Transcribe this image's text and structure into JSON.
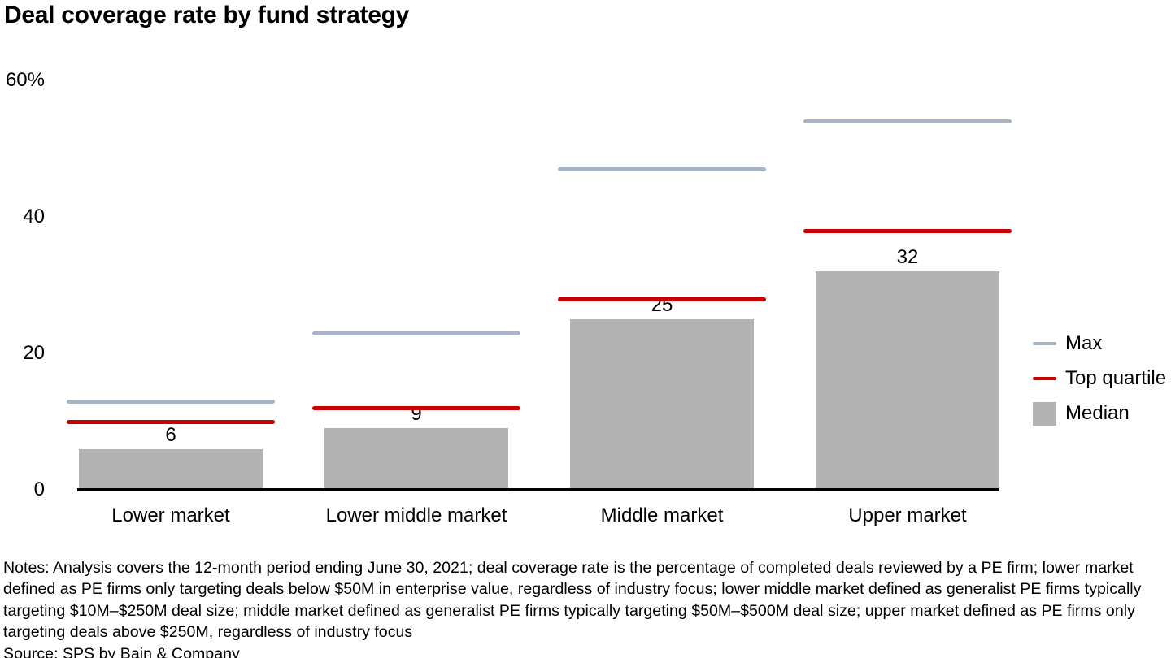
{
  "title": "Deal coverage rate by fund strategy",
  "chart_data": {
    "type": "bar",
    "title": "Deal coverage rate by fund strategy",
    "categories": [
      "Lower market",
      "Lower middle market",
      "Middle market",
      "Upper market"
    ],
    "series": [
      {
        "name": "Max",
        "mark": "dash-line",
        "color": "#a8b4c1",
        "values": [
          13,
          23,
          47,
          54
        ]
      },
      {
        "name": "Top quartile",
        "mark": "dash-line",
        "color": "#cc0000",
        "values": [
          10,
          12,
          28,
          38
        ]
      },
      {
        "name": "Median",
        "mark": "bar",
        "color": "#b3b3b3",
        "values": [
          6,
          9,
          25,
          32
        ]
      }
    ],
    "bar_value_labels": [
      "6",
      "9",
      "25",
      "32"
    ],
    "y_ticks": [
      {
        "value": 0,
        "label": "0"
      },
      {
        "value": 20,
        "label": "20"
      },
      {
        "value": 40,
        "label": "40"
      },
      {
        "value": 60,
        "label": "60%"
      }
    ],
    "xlabel": "",
    "ylabel": "",
    "ylim": [
      0,
      60
    ],
    "units": "percent",
    "grid": false,
    "legend_position": "right"
  },
  "legend": {
    "items": [
      {
        "label": "Max",
        "swatch": "line",
        "color": "#a8b4c1"
      },
      {
        "label": "Top quartile",
        "swatch": "line",
        "color": "#cc0000"
      },
      {
        "label": "Median",
        "swatch": "square",
        "color": "#b3b3b3"
      }
    ]
  },
  "footer": {
    "notes": "Notes: Analysis covers the 12-month period ending June 30, 2021; deal coverage rate is the percentage of completed deals reviewed by a PE firm; lower market defined as PE firms only targeting deals below $50M in enterprise value, regardless of industry focus; lower middle market defined as generalist PE firms typically targeting $10M–$250M deal size; middle market defined as generalist PE firms typically targeting $50M–$500M deal size; upper market defined as PE firms only targeting deals above $250M, regardless of industry focus",
    "source": "Source: SPS by Bain & Company"
  },
  "colors": {
    "max_line": "#a8b4c1",
    "top_quartile_line": "#cc0000",
    "median_bar": "#b3b3b3",
    "axis": "#000000",
    "background": "#ffffff"
  }
}
